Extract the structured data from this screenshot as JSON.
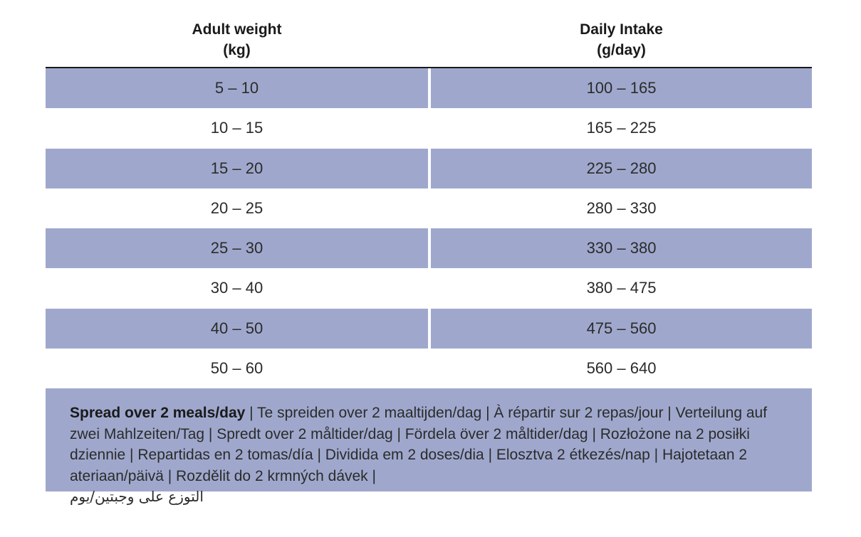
{
  "headers": {
    "weight_line1": "Adult weight",
    "weight_line2": "(kg)",
    "intake_line1": "Daily Intake",
    "intake_line2": "(g/day)"
  },
  "rows": [
    {
      "weight": "5 – 10",
      "intake": "100 – 165"
    },
    {
      "weight": "10 – 15",
      "intake": "165 – 225"
    },
    {
      "weight": "15 – 20",
      "intake": "225 – 280"
    },
    {
      "weight": "20 – 25",
      "intake": "280 – 330"
    },
    {
      "weight": "25 – 30",
      "intake": "330 – 380"
    },
    {
      "weight": "30 – 40",
      "intake": "380 – 475"
    },
    {
      "weight": "40 – 50",
      "intake": "475 – 560"
    },
    {
      "weight": "50 – 60",
      "intake": "560 – 640"
    }
  ],
  "note": {
    "bold": "Spread over 2 meals/day",
    "text": " | Te spreiden over 2 maaltijden/dag | À répartir sur 2 repas/jour | Verteilung auf zwei Mahlzeiten/Tag | Spredt over 2 måltider/dag | Fördela över 2 måltider/dag | Rozłożone na 2 posiłki dziennie | Repartidas en 2 tomas/día | Dividida em 2 doses/dia | Elosztva 2 étkezés/nap | Hajotetaan 2 ateriaan/päivä | Rozdělit do 2 krmných dávek |",
    "arabic": "التوزع على وجبتين/يوم"
  },
  "colors": {
    "shade": "#9fa8cc",
    "rule": "#1a1a1a"
  }
}
